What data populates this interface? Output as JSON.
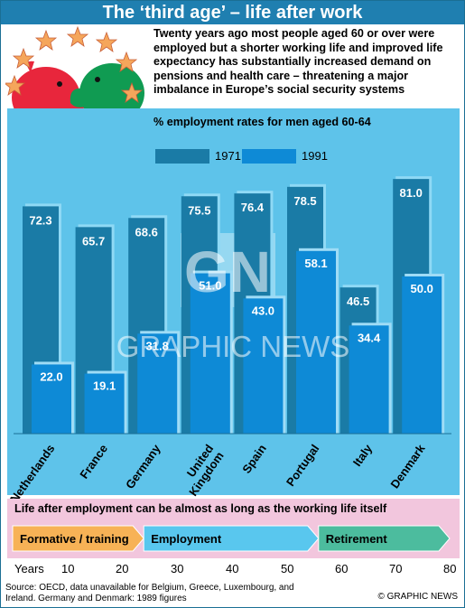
{
  "header": {
    "title": "The ‘third age’ – life after work"
  },
  "intro": {
    "text": "Twenty years ago most people aged 60 or over were employed but a shorter working life and improved life expectancy has substantially increased demand on pensions and health care – threatening a major imbalance in Europe’s social security systems"
  },
  "watermark": {
    "logo_text": "GN",
    "brand_text": "GRAPHIC NEWS"
  },
  "chart_data": {
    "type": "bar",
    "title": "% employment rates for men aged 60-64",
    "categories": [
      "Netherlands",
      "France",
      "Germany",
      "United Kingdom",
      "Spain",
      "Portugal",
      "Italy",
      "Denmark"
    ],
    "series": [
      {
        "name": "1971",
        "values": [
          72.3,
          65.7,
          68.6,
          75.5,
          76.4,
          78.5,
          46.5,
          81.0
        ],
        "labels": [
          "72.3",
          "65.7",
          "68.6",
          "75.5",
          "76.4",
          "78.5",
          "46.5",
          "81.0"
        ],
        "color": "#1a7ba6"
      },
      {
        "name": "1991",
        "values": [
          22.0,
          19.1,
          31.8,
          51.0,
          43.0,
          58.1,
          34.4,
          50.0
        ],
        "labels": [
          "22.0",
          "19.1",
          "31.8",
          "51.0",
          "43.0",
          "58.1",
          "34.4",
          "50.0"
        ],
        "color": "#0e8ad6"
      }
    ],
    "ylim": [
      0,
      100
    ],
    "grid": false,
    "legend": "top"
  },
  "life": {
    "title": "Life after employment can be almost as long as the working life itself",
    "phases": [
      {
        "label": "Formative / training",
        "start": 0,
        "end": 24,
        "color": "#f7b256"
      },
      {
        "label": "Employment",
        "start": 24,
        "end": 56,
        "color": "#59c7ee"
      },
      {
        "label": "Retirement",
        "start": 56,
        "end": 80,
        "color": "#4cbc9e"
      }
    ],
    "axis_title": "Years",
    "ticks": [
      "10",
      "20",
      "30",
      "40",
      "50",
      "60",
      "70",
      "80"
    ]
  },
  "footer": {
    "source": "Source: OECD, data unavailable for Belgium, Greece, Luxembourg, and Ireland. Germany and Denmark: 1989 figures",
    "credit": "© GRAPHIC NEWS"
  },
  "colors": {
    "brand": "#1f7fb0",
    "panel": "#5ec3ea",
    "life_panel": "#f2c6dd",
    "star": "#f5a65b",
    "pig_left": "#e8263c",
    "pig_right": "#109b52"
  }
}
